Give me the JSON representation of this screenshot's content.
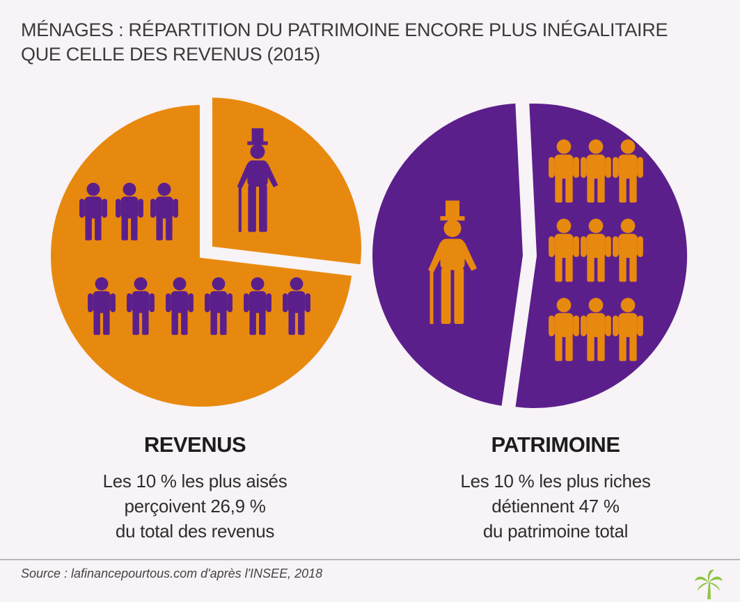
{
  "header": {
    "title_line1": "MÉNAGES : RÉPARTITION DU PATRIMOINE ENCORE PLUS INÉGALITAIRE",
    "title_line2": "QUE CELLE DES REVENUS (2015)"
  },
  "chart_data": [
    {
      "type": "pie",
      "title": "REVENUS",
      "slices": [
        {
          "label": "Les 10 % les plus aisés",
          "value": 26.9,
          "color": "#e8890f",
          "exploded": true
        },
        {
          "label": "",
          "value": 73.1,
          "color": "#e8890f",
          "exploded": false
        }
      ],
      "person_color": "#5b1f8c",
      "caption": [
        "Les 10 % les plus aisés",
        "perçoivent 26,9 %",
        "du total des revenus"
      ]
    },
    {
      "type": "pie",
      "title": "PATRIMOINE",
      "slices": [
        {
          "label": "Les 10 % les plus riches",
          "value": 47,
          "color": "#5b1f8c",
          "exploded": true
        },
        {
          "label": "",
          "value": 53,
          "color": "#5b1f8c",
          "exploded": false
        }
      ],
      "person_color": "#e8890f",
      "caption": [
        "Les 10 % les plus riches",
        "détiennent 47 %",
        "du patrimoine total"
      ]
    }
  ],
  "footer": {
    "source": "Source : lafinancepourtous.com d'après l'INSEE, 2018",
    "logo_icon": "palm-tree-icon"
  }
}
